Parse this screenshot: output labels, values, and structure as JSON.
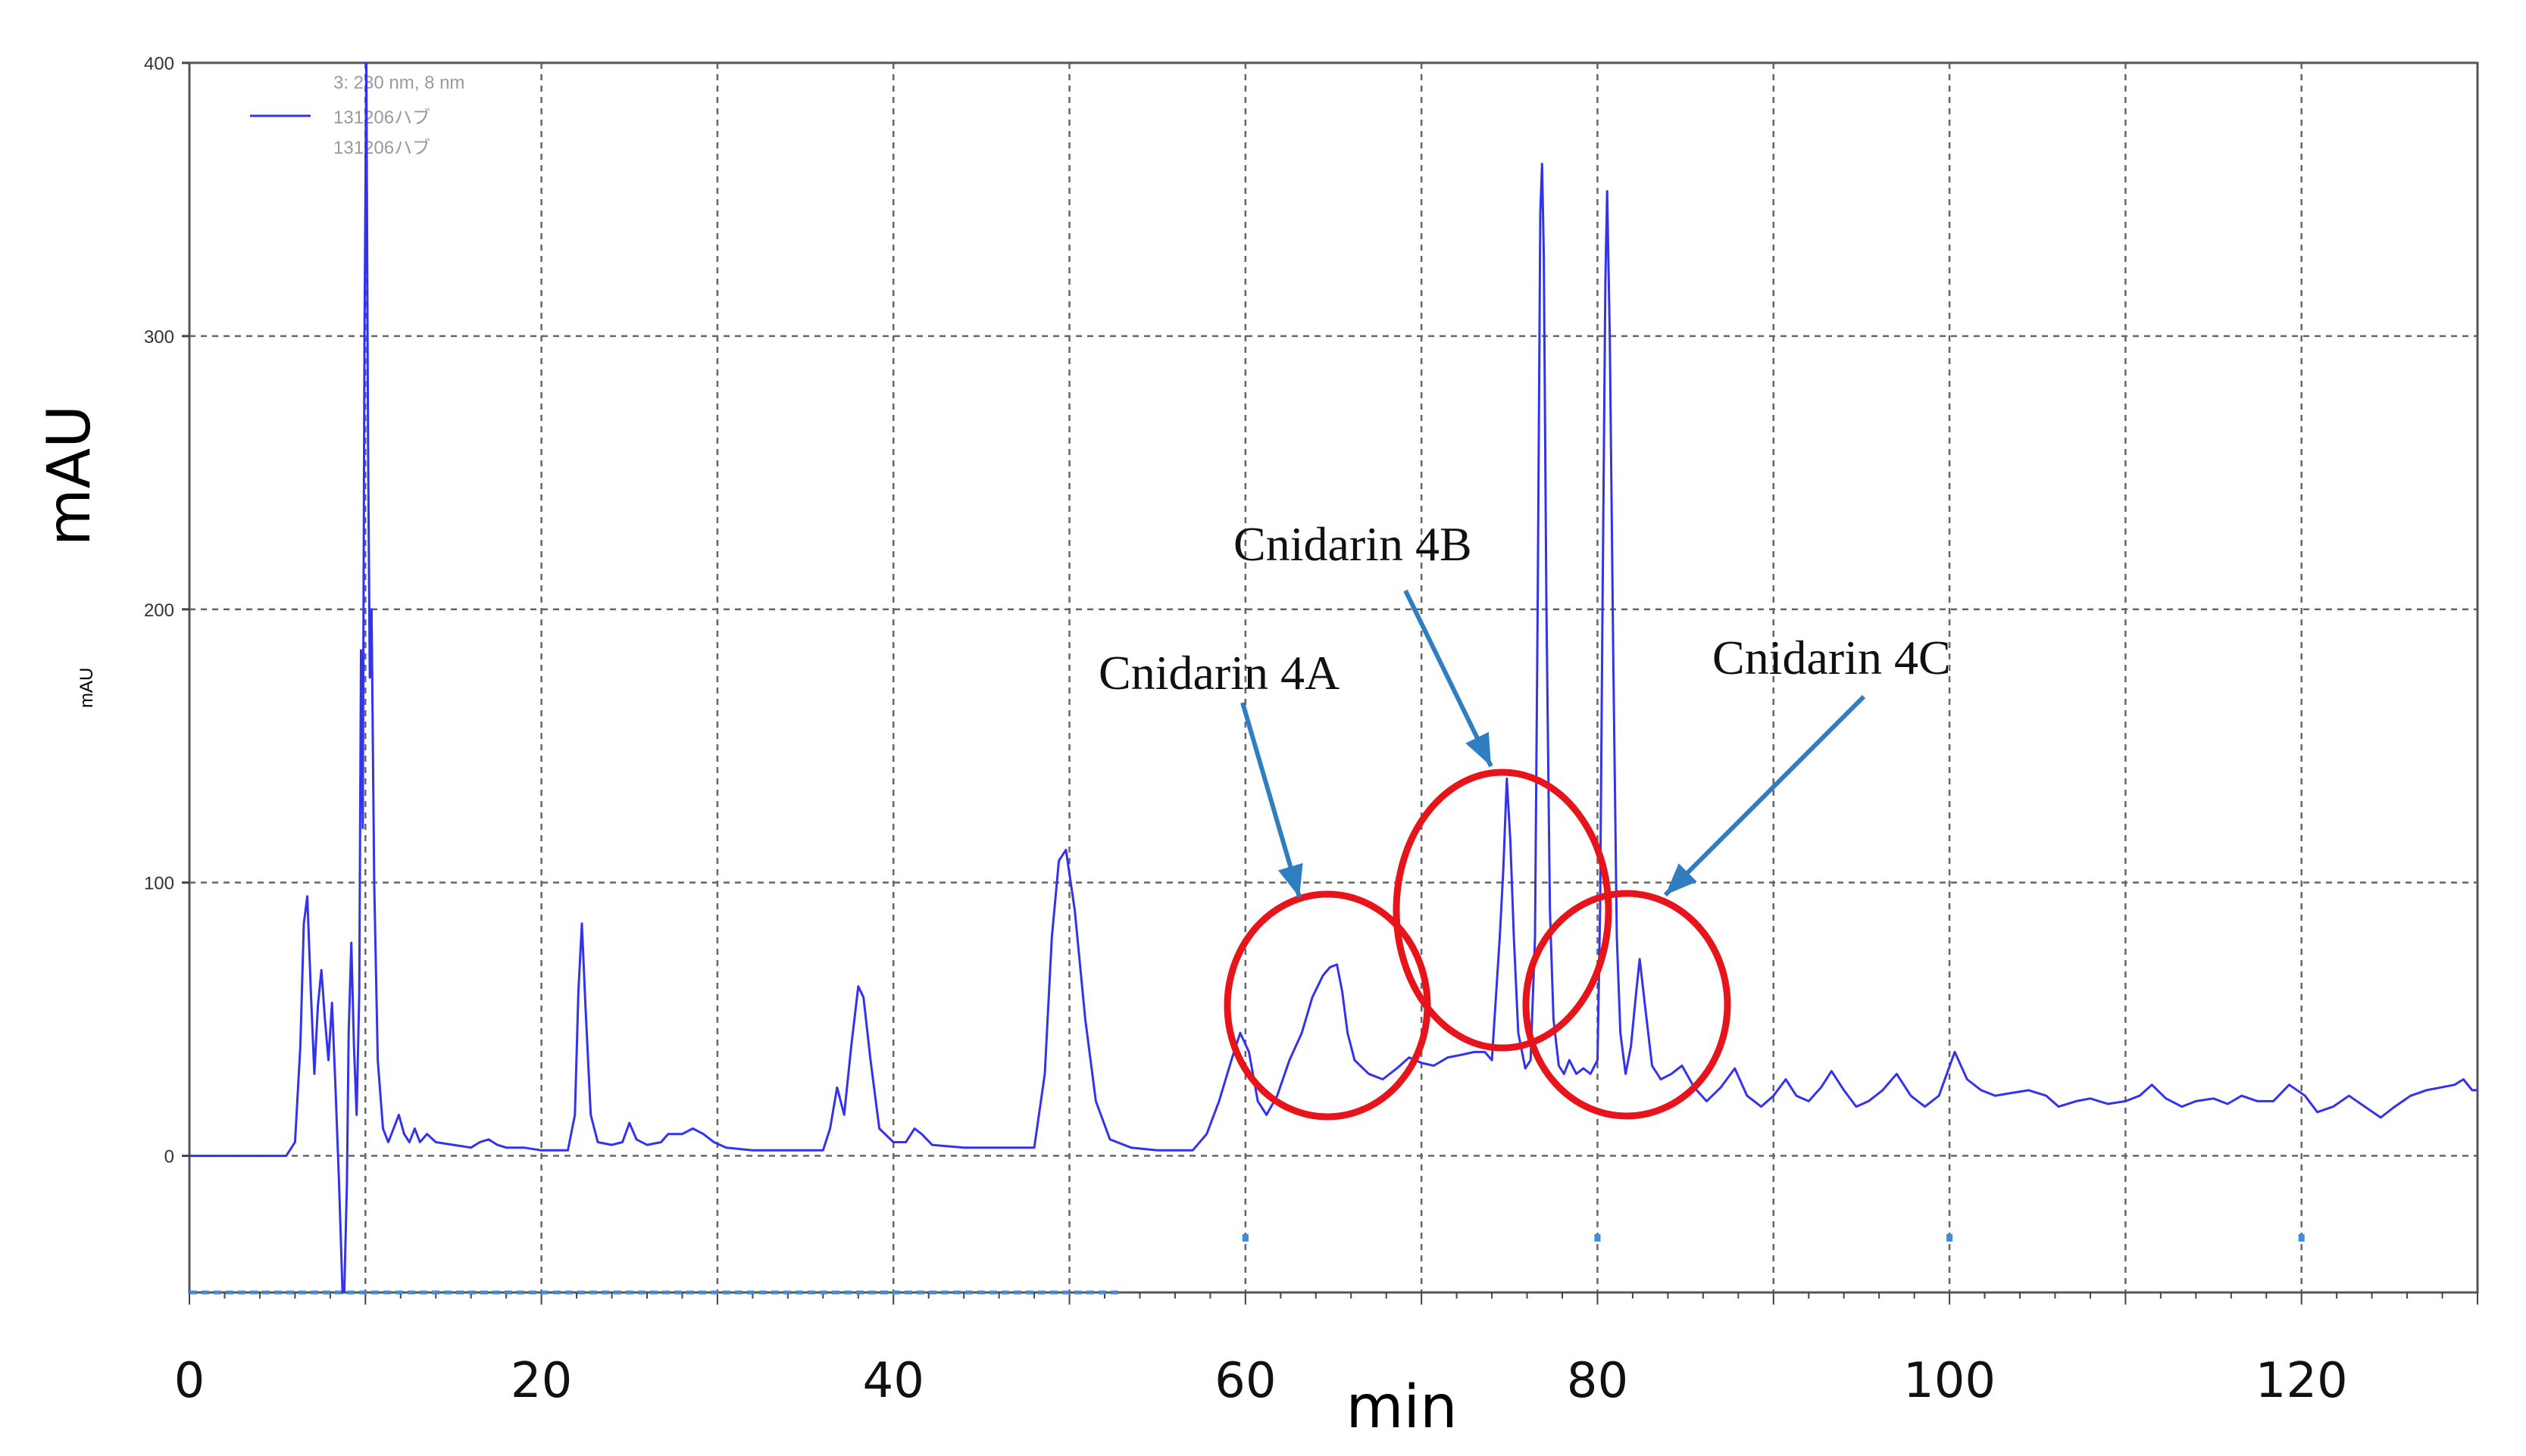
{
  "chart_data": {
    "type": "line",
    "title": "",
    "xlabel": "min",
    "ylabel": "mAU",
    "ylabel_small": "mAU",
    "xlim": [
      0,
      130
    ],
    "ylim": [
      -50,
      400
    ],
    "x_ticks": [
      0,
      20,
      40,
      60,
      80,
      100,
      120
    ],
    "x_tick_labels": [
      "0",
      "20",
      "40",
      "60",
      "80",
      "100",
      "120"
    ],
    "x_grid": [
      10,
      20,
      30,
      40,
      50,
      60,
      70,
      80,
      90,
      100,
      110,
      120
    ],
    "y_ticks": [
      0,
      100,
      200,
      300,
      400
    ],
    "y_tick_labels": [
      "0",
      "100",
      "200",
      "300",
      "400"
    ],
    "grid": true,
    "colors": {
      "trace": "#3333ee",
      "marker": "#3b8fd8",
      "ellipse": "#e8141b",
      "arrow": "#2f7fc0"
    },
    "legend": {
      "placement": "top-left",
      "entries": [
        "3: 230 nm, 8 nm",
        "131206ハブ",
        "131206ハブ"
      ]
    },
    "series": [
      {
        "name": "131206ハブ",
        "points": [
          [
            0,
            0
          ],
          [
            5.5,
            0
          ],
          [
            6.0,
            5
          ],
          [
            6.3,
            40
          ],
          [
            6.5,
            85
          ],
          [
            6.7,
            95
          ],
          [
            6.9,
            60
          ],
          [
            7.1,
            30
          ],
          [
            7.3,
            55
          ],
          [
            7.5,
            68
          ],
          [
            7.7,
            50
          ],
          [
            7.9,
            35
          ],
          [
            8.1,
            56
          ],
          [
            8.3,
            25
          ],
          [
            8.5,
            -10
          ],
          [
            8.7,
            -50
          ],
          [
            8.8,
            -50
          ],
          [
            8.95,
            -10
          ],
          [
            9.05,
            45
          ],
          [
            9.2,
            78
          ],
          [
            9.35,
            40
          ],
          [
            9.5,
            15
          ],
          [
            9.65,
            60
          ],
          [
            9.75,
            185
          ],
          [
            9.85,
            120
          ],
          [
            9.95,
            300
          ],
          [
            10.05,
            400
          ],
          [
            10.15,
            260
          ],
          [
            10.25,
            175
          ],
          [
            10.35,
            200
          ],
          [
            10.5,
            100
          ],
          [
            10.7,
            35
          ],
          [
            11.0,
            10
          ],
          [
            11.3,
            5
          ],
          [
            11.6,
            10
          ],
          [
            11.9,
            15
          ],
          [
            12.2,
            8
          ],
          [
            12.5,
            5
          ],
          [
            12.8,
            10
          ],
          [
            13.1,
            5
          ],
          [
            13.5,
            8
          ],
          [
            14.0,
            5
          ],
          [
            15,
            4
          ],
          [
            16,
            3
          ],
          [
            16.5,
            5
          ],
          [
            17,
            6
          ],
          [
            17.5,
            4
          ],
          [
            18,
            3
          ],
          [
            19,
            3
          ],
          [
            20,
            2
          ],
          [
            21.5,
            2
          ],
          [
            21.9,
            15
          ],
          [
            22.1,
            60
          ],
          [
            22.3,
            85
          ],
          [
            22.5,
            55
          ],
          [
            22.8,
            15
          ],
          [
            23.2,
            5
          ],
          [
            24.0,
            4
          ],
          [
            24.6,
            5
          ],
          [
            25.0,
            12
          ],
          [
            25.4,
            6
          ],
          [
            26,
            4
          ],
          [
            26.8,
            5
          ],
          [
            27.2,
            8
          ],
          [
            28,
            8
          ],
          [
            28.6,
            10
          ],
          [
            29.2,
            8
          ],
          [
            29.8,
            5
          ],
          [
            30.5,
            3
          ],
          [
            32,
            2
          ],
          [
            34,
            2
          ],
          [
            36,
            2
          ],
          [
            36.4,
            10
          ],
          [
            36.8,
            25
          ],
          [
            37.2,
            15
          ],
          [
            37.6,
            40
          ],
          [
            38.0,
            62
          ],
          [
            38.3,
            58
          ],
          [
            38.7,
            35
          ],
          [
            39.2,
            10
          ],
          [
            40,
            5
          ],
          [
            40.7,
            5
          ],
          [
            41.2,
            10
          ],
          [
            41.6,
            8
          ],
          [
            42.2,
            4
          ],
          [
            44,
            3
          ],
          [
            46,
            3
          ],
          [
            48,
            3
          ],
          [
            48.6,
            30
          ],
          [
            49,
            80
          ],
          [
            49.4,
            108
          ],
          [
            49.8,
            112
          ],
          [
            50.3,
            90
          ],
          [
            50.9,
            50
          ],
          [
            51.5,
            20
          ],
          [
            52.3,
            6
          ],
          [
            53.5,
            3
          ],
          [
            55,
            2
          ],
          [
            57,
            2
          ],
          [
            57.8,
            8
          ],
          [
            58.5,
            20
          ],
          [
            59.2,
            35
          ],
          [
            59.7,
            45
          ],
          [
            60.2,
            38
          ],
          [
            60.7,
            20
          ],
          [
            61.2,
            15
          ],
          [
            61.8,
            22
          ],
          [
            62.5,
            35
          ],
          [
            63.2,
            45
          ],
          [
            63.8,
            58
          ],
          [
            64.4,
            66
          ],
          [
            64.8,
            69
          ],
          [
            65.2,
            70
          ],
          [
            65.5,
            60
          ],
          [
            65.8,
            45
          ],
          [
            66.2,
            35
          ],
          [
            67,
            30
          ],
          [
            67.8,
            28
          ],
          [
            68.6,
            32
          ],
          [
            69.3,
            36
          ],
          [
            70,
            34
          ],
          [
            70.7,
            33
          ],
          [
            71.5,
            36
          ],
          [
            72.3,
            37
          ],
          [
            73,
            38
          ],
          [
            73.6,
            38
          ],
          [
            74.0,
            35
          ],
          [
            74.2,
            55
          ],
          [
            74.45,
            80
          ],
          [
            74.65,
            105
          ],
          [
            74.85,
            138
          ],
          [
            75.05,
            115
          ],
          [
            75.25,
            80
          ],
          [
            75.5,
            45
          ],
          [
            75.9,
            32
          ],
          [
            76.2,
            35
          ],
          [
            76.45,
            80
          ],
          [
            76.6,
            200
          ],
          [
            76.75,
            345
          ],
          [
            76.85,
            363
          ],
          [
            76.95,
            330
          ],
          [
            77.1,
            200
          ],
          [
            77.3,
            90
          ],
          [
            77.5,
            50
          ],
          [
            77.8,
            33
          ],
          [
            78.1,
            30
          ],
          [
            78.4,
            35
          ],
          [
            78.8,
            30
          ],
          [
            79.2,
            32
          ],
          [
            79.6,
            30
          ],
          [
            80.0,
            35
          ],
          [
            80.15,
            90
          ],
          [
            80.3,
            210
          ],
          [
            80.45,
            320
          ],
          [
            80.55,
            353
          ],
          [
            80.7,
            300
          ],
          [
            80.9,
            180
          ],
          [
            81.1,
            80
          ],
          [
            81.3,
            45
          ],
          [
            81.6,
            30
          ],
          [
            81.9,
            40
          ],
          [
            82.2,
            60
          ],
          [
            82.4,
            72
          ],
          [
            82.7,
            55
          ],
          [
            83.1,
            33
          ],
          [
            83.6,
            28
          ],
          [
            84.2,
            30
          ],
          [
            84.8,
            33
          ],
          [
            85.5,
            25
          ],
          [
            86.2,
            20
          ],
          [
            87,
            25
          ],
          [
            87.8,
            32
          ],
          [
            88.5,
            22
          ],
          [
            89.3,
            18
          ],
          [
            90,
            22
          ],
          [
            90.7,
            28
          ],
          [
            91.3,
            22
          ],
          [
            92,
            20
          ],
          [
            92.7,
            25
          ],
          [
            93.3,
            31
          ],
          [
            94,
            24
          ],
          [
            94.7,
            18
          ],
          [
            95.4,
            20
          ],
          [
            96.2,
            24
          ],
          [
            97,
            30
          ],
          [
            97.8,
            22
          ],
          [
            98.6,
            18
          ],
          [
            99.4,
            22
          ],
          [
            100.3,
            38
          ],
          [
            101,
            28
          ],
          [
            101.8,
            24
          ],
          [
            102.6,
            22
          ],
          [
            103.5,
            23
          ],
          [
            104.5,
            24
          ],
          [
            105.5,
            22
          ],
          [
            106.2,
            18
          ],
          [
            107.2,
            20
          ],
          [
            108,
            21
          ],
          [
            109,
            19
          ],
          [
            110,
            20
          ],
          [
            110.8,
            22
          ],
          [
            111.5,
            26
          ],
          [
            112.3,
            21
          ],
          [
            113.2,
            18
          ],
          [
            114,
            20
          ],
          [
            115,
            21
          ],
          [
            115.8,
            19
          ],
          [
            116.6,
            22
          ],
          [
            117.5,
            20
          ],
          [
            118.4,
            20
          ],
          [
            119.3,
            26
          ],
          [
            120.2,
            22
          ],
          [
            120.9,
            16
          ],
          [
            121.8,
            18
          ],
          [
            122.7,
            22
          ],
          [
            123.6,
            18
          ],
          [
            124.5,
            14
          ],
          [
            125.3,
            18
          ],
          [
            126.2,
            22
          ],
          [
            127.1,
            24
          ],
          [
            127.9,
            25
          ],
          [
            128.7,
            26
          ],
          [
            129.2,
            28
          ],
          [
            129.7,
            24
          ],
          [
            130,
            24
          ]
        ]
      }
    ],
    "baseline_series": {
      "points": [
        [
          0,
          -50
        ],
        [
          53,
          -50
        ]
      ]
    },
    "markers_x": [
      60,
      80,
      100,
      120
    ],
    "annotations": [
      {
        "label": "Cnidarin 4A",
        "peak_x": 65.0,
        "peak_y": 55
      },
      {
        "label": "Cnidarin 4B",
        "peak_x": 74.8,
        "peak_y": 95
      },
      {
        "label": "Cnidarin 4C",
        "peak_x": 82.0,
        "peak_y": 55
      }
    ]
  }
}
